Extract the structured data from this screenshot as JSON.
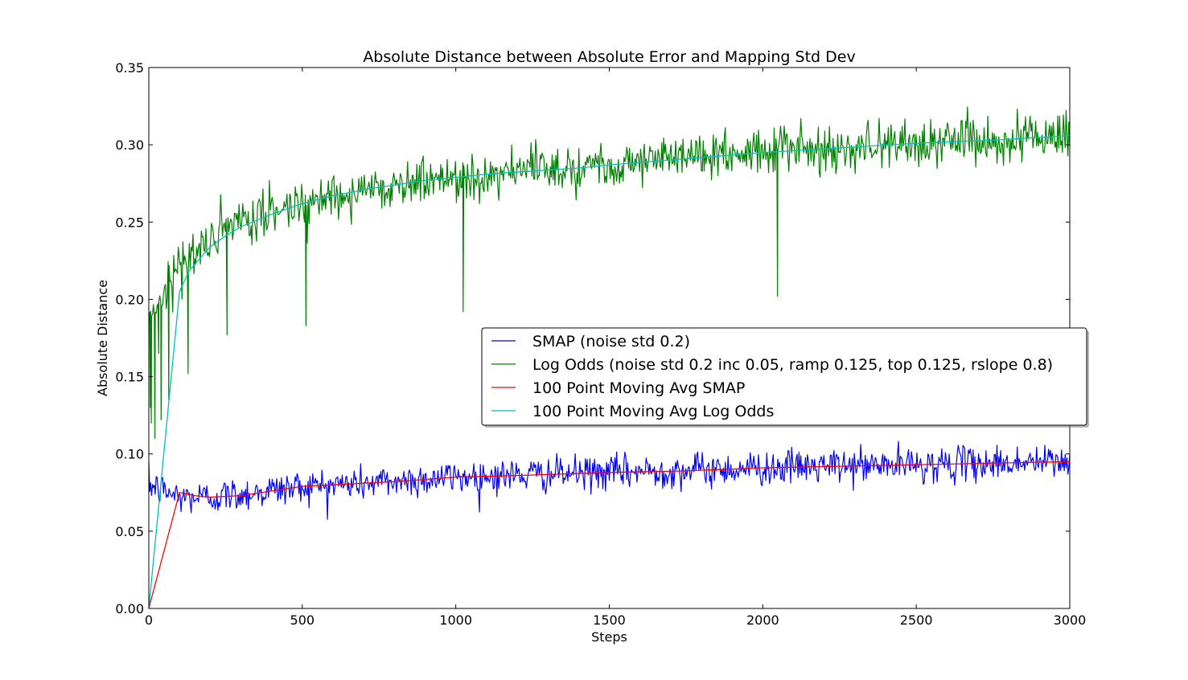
{
  "chart_data": {
    "type": "line",
    "title": "Absolute Distance between Absolute Error and Mapping Std Dev",
    "xlabel": "Steps",
    "ylabel": "Absolute Distance",
    "xlim": [
      0,
      3000
    ],
    "ylim": [
      0,
      0.35
    ],
    "xticks": [
      0,
      500,
      1000,
      1500,
      2000,
      2500,
      3000
    ],
    "xtick_labels": [
      "0",
      "500",
      "1000",
      "1500",
      "2000",
      "2500",
      "3000"
    ],
    "yticks": [
      0.0,
      0.05,
      0.1,
      0.15,
      0.2,
      0.25,
      0.3,
      0.35
    ],
    "ytick_labels": [
      "0.00",
      "0.05",
      "0.10",
      "0.15",
      "0.20",
      "0.25",
      "0.30",
      "0.35"
    ],
    "grid": false,
    "legend_position": "center-right",
    "series": [
      {
        "name": "SMAP (noise std 0.2)",
        "color": "#0000ff",
        "kind": "noisy",
        "noise": 0.0055,
        "trend": [
          [
            0,
            0.08
          ],
          [
            50,
            0.076
          ],
          [
            100,
            0.072
          ],
          [
            200,
            0.072
          ],
          [
            300,
            0.074
          ],
          [
            500,
            0.079
          ],
          [
            700,
            0.081
          ],
          [
            1000,
            0.085
          ],
          [
            1500,
            0.088
          ],
          [
            2000,
            0.091
          ],
          [
            2500,
            0.093
          ],
          [
            3000,
            0.095
          ]
        ],
        "spikes": []
      },
      {
        "name": "Log Odds (noise std 0.2 inc 0.05, ramp 0.125, top 0.125, rslope 0.8)",
        "color": "#008000",
        "kind": "noisy",
        "noise": 0.0075,
        "trend": [
          [
            0,
            0.19
          ],
          [
            50,
            0.205
          ],
          [
            100,
            0.222
          ],
          [
            200,
            0.238
          ],
          [
            300,
            0.249
          ],
          [
            500,
            0.263
          ],
          [
            700,
            0.271
          ],
          [
            1000,
            0.279
          ],
          [
            1250,
            0.284
          ],
          [
            1500,
            0.288
          ],
          [
            2000,
            0.296
          ],
          [
            2500,
            0.301
          ],
          [
            3000,
            0.306
          ]
        ],
        "spikes": [
          [
            5,
            0.13
          ],
          [
            8,
            0.12
          ],
          [
            20,
            0.11
          ],
          [
            32,
            0.165
          ],
          [
            40,
            0.122
          ],
          [
            65,
            0.135
          ],
          [
            128,
            0.152
          ],
          [
            255,
            0.177
          ],
          [
            512,
            0.183
          ],
          [
            1024,
            0.192
          ],
          [
            2048,
            0.202
          ]
        ]
      },
      {
        "name": "100 Point Moving Avg SMAP",
        "color": "#ff0000",
        "kind": "smooth",
        "points": [
          [
            0,
            0.0
          ],
          [
            100,
            0.075
          ],
          [
            150,
            0.073
          ],
          [
            200,
            0.072
          ],
          [
            300,
            0.073
          ],
          [
            400,
            0.076
          ],
          [
            500,
            0.079
          ],
          [
            600,
            0.08
          ],
          [
            700,
            0.081
          ],
          [
            800,
            0.082
          ],
          [
            1000,
            0.085
          ],
          [
            1200,
            0.086
          ],
          [
            1500,
            0.088
          ],
          [
            1750,
            0.089
          ],
          [
            2000,
            0.091
          ],
          [
            2250,
            0.092
          ],
          [
            2500,
            0.093
          ],
          [
            2750,
            0.094
          ],
          [
            3000,
            0.095
          ]
        ]
      },
      {
        "name": "100 Point Moving Avg Log Odds",
        "color": "#00bfbf",
        "kind": "smooth",
        "points": [
          [
            0,
            0.0
          ],
          [
            100,
            0.205
          ],
          [
            130,
            0.218
          ],
          [
            160,
            0.225
          ],
          [
            200,
            0.234
          ],
          [
            250,
            0.241
          ],
          [
            300,
            0.247
          ],
          [
            400,
            0.255
          ],
          [
            500,
            0.262
          ],
          [
            600,
            0.267
          ],
          [
            700,
            0.271
          ],
          [
            800,
            0.274
          ],
          [
            900,
            0.277
          ],
          [
            1000,
            0.279
          ],
          [
            1100,
            0.281
          ],
          [
            1250,
            0.283
          ],
          [
            1400,
            0.285
          ],
          [
            1500,
            0.287
          ],
          [
            1750,
            0.291
          ],
          [
            2000,
            0.295
          ],
          [
            2250,
            0.298
          ],
          [
            2500,
            0.301
          ],
          [
            2750,
            0.303
          ],
          [
            3000,
            0.306
          ]
        ]
      }
    ]
  }
}
